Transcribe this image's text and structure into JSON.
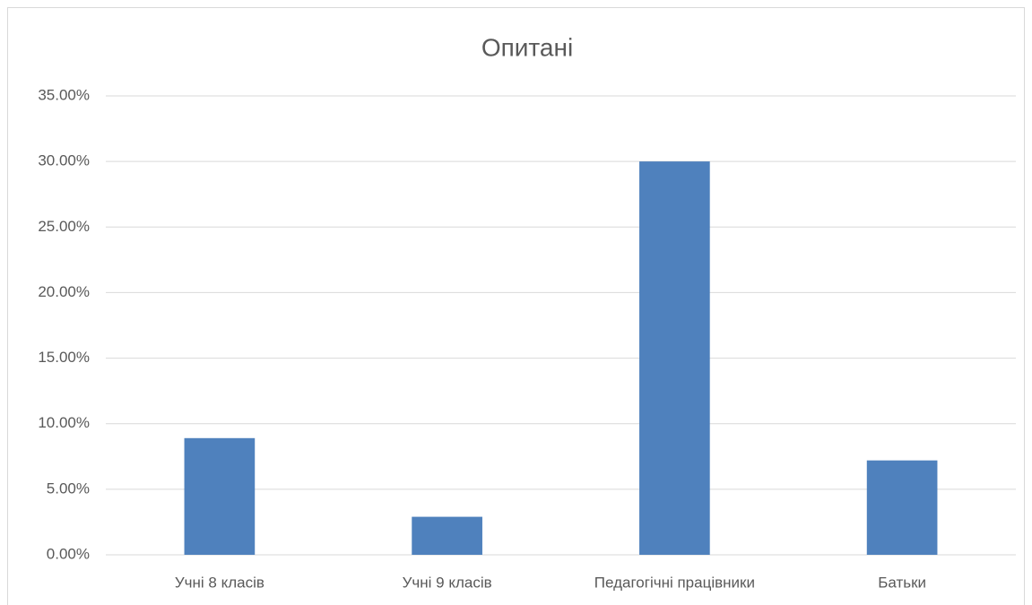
{
  "chart_data": {
    "type": "bar",
    "title": "Опитані",
    "categories": [
      "Учні 8 класів",
      "Учні 9 класів",
      "Педагогічні працівники",
      "Батьки"
    ],
    "values": [
      8.9,
      2.9,
      30.0,
      7.2
    ],
    "color": "#4f81bd",
    "ylim": [
      0,
      35
    ],
    "yticks": [
      {
        "value": 0,
        "label": "0.00%"
      },
      {
        "value": 5,
        "label": "5.00%"
      },
      {
        "value": 10,
        "label": "10.00%"
      },
      {
        "value": 15,
        "label": "15.00%"
      },
      {
        "value": 20,
        "label": "20.00%"
      },
      {
        "value": 25,
        "label": "25.00%"
      },
      {
        "value": 30,
        "label": "30.00%"
      },
      {
        "value": 35,
        "label": "35.00%"
      }
    ],
    "grid": true
  }
}
